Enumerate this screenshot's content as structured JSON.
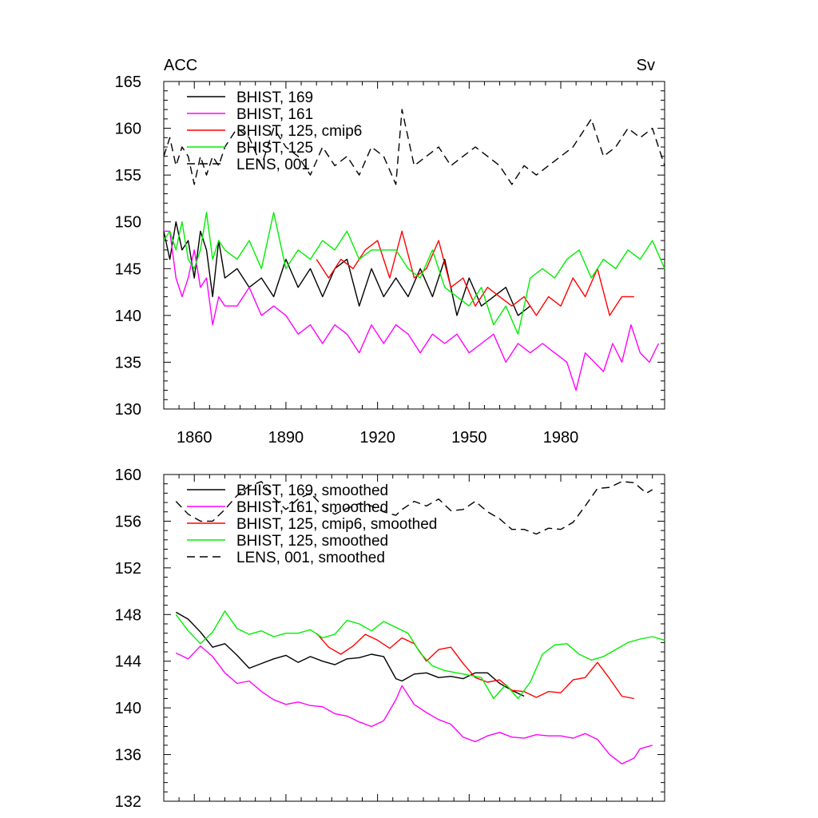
{
  "chart_data": [
    {
      "type": "line",
      "title_left": "ACC",
      "title_right": "Sv",
      "xlim": [
        1850,
        2014
      ],
      "ylim": [
        130,
        165
      ],
      "y_ticks": [
        130,
        135,
        140,
        145,
        150,
        155,
        160,
        165
      ],
      "x_ticks": [
        1860,
        1890,
        1920,
        1950,
        1980
      ],
      "x_tick_labels": [
        "1860",
        "1890",
        "1920",
        "1950",
        "1980"
      ],
      "legend_position": "top-left",
      "series": [
        {
          "name": "BHIST, 169",
          "color": "#000000",
          "dash": "solid",
          "x": [
            1850,
            1852,
            1854,
            1856,
            1858,
            1860,
            1862,
            1864,
            1866,
            1868,
            1870,
            1874,
            1878,
            1882,
            1886,
            1890,
            1894,
            1898,
            1902,
            1906,
            1910,
            1914,
            1918,
            1922,
            1926,
            1930,
            1934,
            1938,
            1942,
            1946,
            1950,
            1954,
            1958,
            1962,
            1966,
            1970
          ],
          "y": [
            149,
            146,
            150,
            147,
            148,
            144,
            149,
            147,
            142,
            148,
            144,
            145,
            143,
            144,
            142,
            146,
            143,
            145,
            142,
            145,
            146,
            141,
            145,
            142,
            144,
            142,
            145,
            142,
            146,
            140,
            144,
            141,
            142,
            143,
            140,
            141
          ]
        },
        {
          "name": "BHIST, 161",
          "color": "#ff00ff",
          "dash": "solid",
          "x": [
            1850,
            1852,
            1854,
            1856,
            1858,
            1860,
            1862,
            1864,
            1866,
            1868,
            1870,
            1874,
            1878,
            1882,
            1886,
            1890,
            1894,
            1898,
            1902,
            1906,
            1910,
            1914,
            1918,
            1922,
            1926,
            1930,
            1934,
            1938,
            1942,
            1946,
            1950,
            1954,
            1958,
            1962,
            1966,
            1970,
            1974,
            1978,
            1982,
            1985,
            1988,
            1991,
            1994,
            1997,
            2000,
            2003,
            2006,
            2009,
            2012
          ],
          "y": [
            149,
            149,
            144,
            142,
            144,
            147,
            143,
            144,
            139,
            142,
            141,
            141,
            143,
            140,
            141,
            140,
            138,
            139,
            137,
            139,
            138,
            136,
            139,
            137,
            139,
            138,
            136,
            138,
            137,
            138,
            136,
            137,
            138,
            135,
            137,
            136,
            137,
            136,
            135,
            132,
            136,
            135,
            134,
            137,
            135,
            139,
            136,
            135,
            137
          ]
        },
        {
          "name": "BHIST, 125, cmip6",
          "color": "#ff0000",
          "dash": "solid",
          "x": [
            1900,
            1904,
            1908,
            1912,
            1916,
            1920,
            1924,
            1928,
            1932,
            1936,
            1940,
            1944,
            1948,
            1952,
            1956,
            1960,
            1964,
            1968,
            1972,
            1976,
            1980,
            1984,
            1988,
            1992,
            1996,
            2000,
            2004
          ],
          "y": [
            146,
            144,
            146,
            145,
            147,
            148,
            144,
            149,
            144,
            145,
            148,
            143,
            144,
            141,
            143,
            142,
            141,
            142,
            140,
            142,
            141,
            144,
            142,
            145,
            140,
            142,
            142
          ]
        },
        {
          "name": "BHIST, 125",
          "color": "#00ee00",
          "dash": "solid",
          "x": [
            1850,
            1852,
            1854,
            1856,
            1858,
            1860,
            1862,
            1864,
            1866,
            1868,
            1870,
            1874,
            1878,
            1882,
            1886,
            1890,
            1894,
            1898,
            1902,
            1906,
            1910,
            1914,
            1918,
            1922,
            1926,
            1930,
            1934,
            1938,
            1942,
            1946,
            1950,
            1954,
            1958,
            1962,
            1966,
            1970,
            1974,
            1978,
            1982,
            1986,
            1990,
            1994,
            1998,
            2002,
            2006,
            2010,
            2014
          ],
          "y": [
            148,
            149,
            147,
            150,
            146,
            145,
            147,
            151,
            146,
            148,
            147,
            146,
            148,
            145,
            151,
            145,
            147,
            146,
            148,
            147,
            149,
            146,
            147,
            147,
            147,
            145,
            144,
            147,
            143,
            142,
            141,
            143,
            139,
            141,
            138,
            144,
            145,
            144,
            146,
            147,
            144,
            146,
            145,
            147,
            146,
            148,
            145
          ]
        },
        {
          "name": "LENS, 001",
          "color": "#000000",
          "dash": "dashed",
          "x": [
            1850,
            1852,
            1854,
            1856,
            1858,
            1860,
            1862,
            1864,
            1866,
            1868,
            1870,
            1874,
            1878,
            1882,
            1886,
            1890,
            1894,
            1898,
            1902,
            1906,
            1910,
            1914,
            1918,
            1922,
            1926,
            1928,
            1932,
            1936,
            1940,
            1944,
            1948,
            1952,
            1956,
            1960,
            1964,
            1968,
            1972,
            1976,
            1980,
            1984,
            1988,
            1990,
            1994,
            1998,
            2002,
            2006,
            2010,
            2014
          ],
          "y": [
            157,
            159,
            156,
            158,
            157,
            154,
            157,
            155,
            157,
            156,
            158,
            160,
            159,
            156,
            160,
            158,
            157,
            155,
            158,
            156,
            157,
            155,
            158,
            157,
            154,
            162,
            156,
            157,
            158,
            156,
            157,
            158,
            157,
            156,
            154,
            156,
            155,
            156,
            157,
            158,
            160,
            161,
            157,
            158,
            160,
            159,
            160,
            156
          ]
        }
      ]
    },
    {
      "type": "line",
      "xlim": [
        1850,
        2014
      ],
      "ylim": [
        132,
        160
      ],
      "y_ticks": [
        132,
        136,
        140,
        144,
        148,
        152,
        156,
        160
      ],
      "x_ticks": [
        1860,
        1890,
        1920,
        1950,
        1980
      ],
      "legend_position": "top-left",
      "series": [
        {
          "name": "BHIST, 169, smoothed",
          "color": "#000000",
          "dash": "solid",
          "x": [
            1854,
            1858,
            1862,
            1866,
            1870,
            1874,
            1878,
            1882,
            1886,
            1890,
            1894,
            1898,
            1902,
            1906,
            1910,
            1914,
            1918,
            1922,
            1926,
            1928,
            1932,
            1936,
            1940,
            1944,
            1948,
            1952,
            1956,
            1960,
            1964,
            1968
          ],
          "y": [
            148.2,
            147.6,
            146.5,
            145.2,
            145.5,
            144.5,
            143.4,
            143.8,
            144.2,
            144.5,
            143.9,
            144.4,
            144,
            143.7,
            144.2,
            144.3,
            144.6,
            144.4,
            142.5,
            142.3,
            142.9,
            143,
            142.6,
            142.7,
            142.5,
            143,
            143,
            142.1,
            141.5,
            141
          ]
        },
        {
          "name": "BHIST, 161, smoothed",
          "color": "#ff00ff",
          "dash": "solid",
          "x": [
            1854,
            1858,
            1862,
            1866,
            1870,
            1874,
            1878,
            1882,
            1886,
            1890,
            1894,
            1898,
            1902,
            1906,
            1910,
            1914,
            1918,
            1922,
            1926,
            1928,
            1932,
            1936,
            1940,
            1944,
            1948,
            1952,
            1956,
            1960,
            1964,
            1968,
            1972,
            1976,
            1980,
            1984,
            1988,
            1992,
            1996,
            2000,
            2004,
            2006,
            2010
          ],
          "y": [
            144.7,
            144.2,
            145.3,
            144.4,
            143,
            142.1,
            142.3,
            141.4,
            140.7,
            140.3,
            140.5,
            140.2,
            140.1,
            139.5,
            139.3,
            138.8,
            138.4,
            138.9,
            140.7,
            141.9,
            140.3,
            139.6,
            139,
            138.6,
            137.5,
            137.1,
            137.6,
            137.9,
            137.5,
            137.4,
            137.7,
            137.6,
            137.6,
            137.4,
            137.8,
            137.3,
            136,
            135.2,
            135.7,
            136.5,
            136.8
          ]
        },
        {
          "name": "BHIST, 125, cmip6, smoothed",
          "color": "#ff0000",
          "dash": "solid",
          "x": [
            1900,
            1904,
            1908,
            1912,
            1916,
            1920,
            1924,
            1928,
            1932,
            1936,
            1940,
            1944,
            1948,
            1952,
            1956,
            1960,
            1964,
            1968,
            1972,
            1976,
            1980,
            1984,
            1988,
            1992,
            1996,
            2000,
            2004
          ],
          "y": [
            146.4,
            145.2,
            144.6,
            145.3,
            146.3,
            145.8,
            145.1,
            146,
            145.5,
            144,
            145,
            145.2,
            143.8,
            142.6,
            142.2,
            142.4,
            141.5,
            141.4,
            140.9,
            141.4,
            141.3,
            142.4,
            142.6,
            143.9,
            142.5,
            141,
            140.8
          ]
        },
        {
          "name": "BHIST, 125, smoothed",
          "color": "#00ee00",
          "dash": "solid",
          "x": [
            1854,
            1858,
            1862,
            1866,
            1870,
            1874,
            1878,
            1882,
            1886,
            1890,
            1894,
            1898,
            1902,
            1906,
            1910,
            1914,
            1918,
            1922,
            1926,
            1930,
            1934,
            1938,
            1942,
            1946,
            1950,
            1954,
            1958,
            1962,
            1966,
            1970,
            1974,
            1978,
            1982,
            1986,
            1990,
            1994,
            1998,
            2002,
            2006,
            2010,
            2014
          ],
          "y": [
            148,
            146.6,
            145.5,
            146.5,
            148.3,
            146.8,
            146.3,
            146.6,
            146.1,
            146.4,
            146.4,
            146.7,
            146,
            146.3,
            147.5,
            147.2,
            146.6,
            147.4,
            146.9,
            146.4,
            144.7,
            143.6,
            143.2,
            143,
            142.8,
            142.6,
            140.8,
            142,
            140.8,
            142.2,
            144.6,
            145.4,
            145.5,
            144.6,
            144.1,
            144.4,
            145,
            145.6,
            145.9,
            146.1,
            145.8
          ]
        },
        {
          "name": "LENS, 001, smoothed",
          "color": "#000000",
          "dash": "dashed",
          "x": [
            1854,
            1858,
            1862,
            1866,
            1870,
            1874,
            1878,
            1882,
            1886,
            1890,
            1894,
            1898,
            1902,
            1906,
            1910,
            1914,
            1918,
            1922,
            1926,
            1928,
            1932,
            1936,
            1940,
            1944,
            1948,
            1952,
            1956,
            1960,
            1964,
            1968,
            1972,
            1976,
            1980,
            1984,
            1988,
            1992,
            1996,
            2000,
            2004,
            2008,
            2010
          ],
          "y": [
            157.7,
            156.6,
            156,
            156,
            157,
            158.2,
            159,
            159.4,
            158,
            157,
            157.9,
            158.4,
            157.3,
            156.6,
            157.1,
            157.5,
            157.3,
            156.8,
            156.5,
            157,
            157.7,
            157.3,
            157.9,
            156.9,
            157,
            157.7,
            156.8,
            156.2,
            155.3,
            155.3,
            154.9,
            155.4,
            155.3,
            155.9,
            157.3,
            158.8,
            158.9,
            159.4,
            159.3,
            158.4,
            158.7
          ]
        }
      ]
    }
  ]
}
